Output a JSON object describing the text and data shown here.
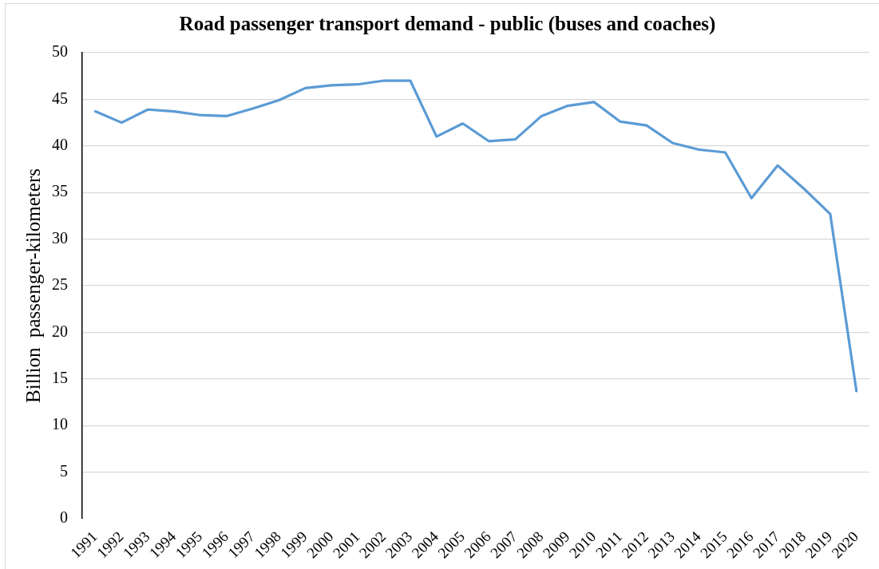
{
  "chart_data": {
    "type": "line",
    "title": "Road passenger transport demand - public (buses and coaches)",
    "ylabel": "Billion  passenger-kilometers",
    "categories": [
      "1991",
      "1992",
      "1993",
      "1994",
      "1995",
      "1996",
      "1997",
      "1998",
      "1999",
      "2000",
      "2001",
      "2002",
      "2003",
      "2004",
      "2005",
      "2006",
      "2007",
      "2008",
      "2009",
      "2010",
      "2011",
      "2012",
      "2013",
      "2014",
      "2015",
      "2016",
      "2017",
      "2018",
      "2019",
      "2020"
    ],
    "series": [
      {
        "color": "#5b9bd5",
        "values": [
          43.7,
          42.5,
          43.9,
          43.7,
          43.3,
          43.2,
          44.0,
          44.9,
          46.2,
          46.5,
          46.6,
          47.0,
          47.0,
          41.0,
          42.4,
          40.5,
          40.7,
          43.2,
          44.3,
          44.7,
          42.6,
          42.2,
          40.3,
          39.6,
          39.3,
          34.4,
          37.9,
          35.4,
          32.7,
          13.7
        ]
      }
    ],
    "ylim": [
      0,
      50
    ],
    "yticks": [
      0,
      5,
      10,
      15,
      20,
      25,
      30,
      35,
      40,
      45,
      50
    ],
    "grid": "y",
    "marker": "none",
    "line_style": "solid"
  }
}
